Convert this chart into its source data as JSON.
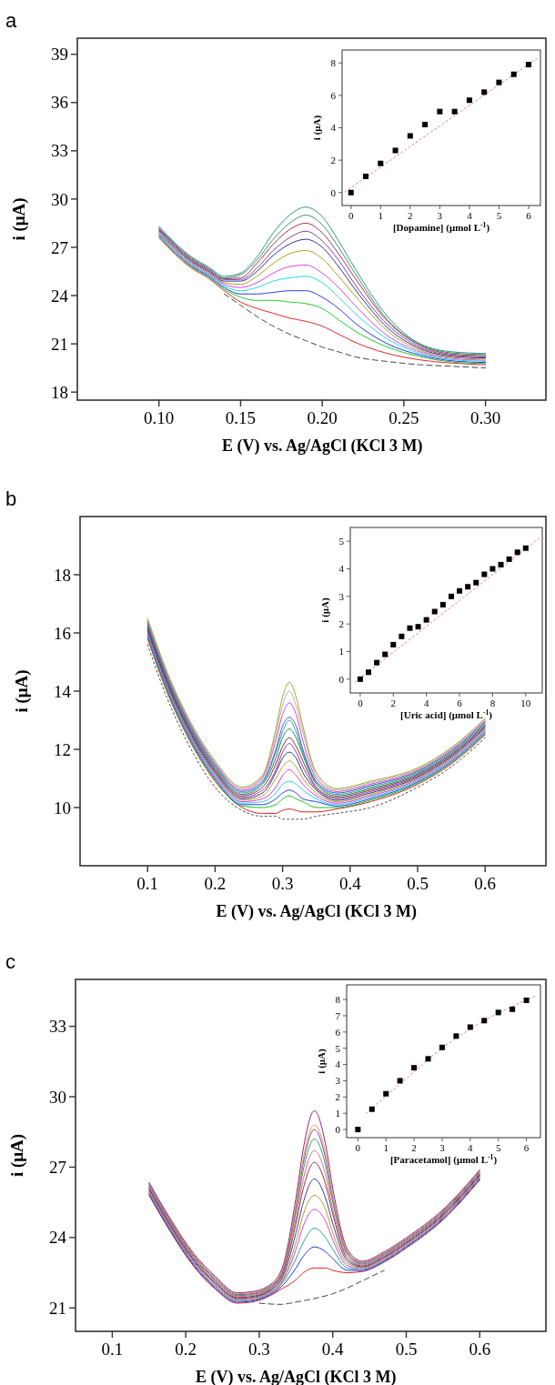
{
  "chart_data": [
    {
      "type": "line",
      "title": "a",
      "xlabel": "E (V) vs. Ag/AgCl (KCl 3 M)",
      "ylabel": "i (μA)",
      "xlim": [
        0.05,
        0.337
      ],
      "ylim": [
        17.5,
        40
      ],
      "xticks": [
        {
          "value": 0.1,
          "label": "0.10"
        },
        {
          "value": 0.15,
          "label": "0.15"
        },
        {
          "value": 0.2,
          "label": "0.20"
        },
        {
          "value": 0.25,
          "label": "0.25"
        },
        {
          "value": 0.3,
          "label": "0.30"
        }
      ],
      "yticks": [
        18,
        21,
        24,
        27,
        30,
        33,
        36,
        39
      ],
      "x": [
        0.1,
        0.12,
        0.13,
        0.14,
        0.15,
        0.16,
        0.17,
        0.18,
        0.19,
        0.2,
        0.21,
        0.22,
        0.24,
        0.26,
        0.28,
        0.3
      ],
      "series": [
        {
          "color": "#444444",
          "line_style": "dashed",
          "x": [
            0.14,
            0.15,
            0.16,
            0.17,
            0.18,
            0.19,
            0.2,
            0.21,
            0.22,
            0.24,
            0.26,
            0.28,
            0.3
          ],
          "values": [
            24.1,
            23.4,
            22.7,
            22.1,
            21.6,
            21.2,
            20.8,
            20.5,
            20.2,
            19.9,
            19.7,
            19.6,
            19.5
          ]
        },
        {
          "color": "#e8262b",
          "values": [
            27.6,
            25.7,
            25.1,
            24.3,
            23.6,
            23.2,
            22.9,
            22.6,
            22.4,
            22.1,
            21.6,
            21.1,
            20.4,
            20.0,
            19.8,
            19.7
          ]
        },
        {
          "color": "#22cc33",
          "values": [
            27.67,
            25.77,
            25.17,
            24.4,
            23.9,
            23.7,
            23.7,
            23.6,
            23.5,
            23.2,
            22.5,
            21.8,
            20.8,
            20.2,
            19.87,
            19.77
          ]
        },
        {
          "color": "#2a3bd6",
          "values": [
            27.74,
            25.84,
            25.24,
            24.5,
            24.1,
            24.1,
            24.2,
            24.3,
            24.3,
            23.9,
            23.2,
            22.3,
            21.0,
            20.3,
            19.94,
            19.84
          ]
        },
        {
          "color": "#22d8f0",
          "values": [
            27.81,
            25.91,
            25.31,
            24.6,
            24.3,
            24.5,
            24.9,
            25.1,
            25.2,
            24.8,
            23.9,
            22.9,
            21.3,
            20.4,
            20.01,
            19.91
          ]
        },
        {
          "color": "#e040e0",
          "values": [
            27.88,
            25.98,
            25.38,
            24.7,
            24.5,
            24.8,
            25.4,
            25.8,
            25.9,
            25.4,
            24.5,
            23.4,
            21.5,
            20.5,
            20.08,
            19.98
          ]
        },
        {
          "color": "#a8a020",
          "values": [
            27.95,
            26.05,
            25.45,
            24.8,
            24.7,
            25.2,
            26.0,
            26.6,
            26.8,
            26.3,
            25.2,
            24.0,
            21.8,
            20.6,
            20.15,
            20.05
          ]
        },
        {
          "color": "#303090",
          "values": [
            28.02,
            26.12,
            25.52,
            24.9,
            24.9,
            25.5,
            26.5,
            27.2,
            27.5,
            27.0,
            25.8,
            24.4,
            22.0,
            20.7,
            20.22,
            20.12
          ]
        },
        {
          "color": "#8040a0",
          "values": [
            28.09,
            26.19,
            25.59,
            25.0,
            25.0,
            25.7,
            26.8,
            27.6,
            28.0,
            27.4,
            26.2,
            24.7,
            22.2,
            20.8,
            20.29,
            20.19
          ]
        },
        {
          "color": "#a03050",
          "values": [
            28.16,
            26.26,
            25.66,
            25.05,
            25.1,
            26.0,
            27.2,
            28.1,
            28.5,
            27.9,
            26.6,
            25.1,
            22.4,
            20.9,
            20.36,
            20.26
          ]
        },
        {
          "color": "#409060",
          "values": [
            28.23,
            26.33,
            25.73,
            25.1,
            25.3,
            26.2,
            27.5,
            28.5,
            29.0,
            28.4,
            27.0,
            25.4,
            22.5,
            20.95,
            20.43,
            20.33
          ]
        },
        {
          "color": "#309090",
          "values": [
            28.3,
            26.4,
            25.8,
            25.2,
            25.4,
            26.4,
            27.9,
            29.0,
            29.5,
            28.9,
            27.4,
            25.7,
            22.7,
            21.0,
            20.5,
            20.4
          ]
        }
      ]
    },
    {
      "type": "scatter",
      "xlabel": "[Dopamine] (μmol L$^{-1}$)",
      "ylabel": "i (μA)",
      "xlim": [
        -0.3,
        6.4
      ],
      "ylim": [
        -0.8,
        8.8
      ],
      "xticks": [
        0,
        1,
        2,
        3,
        4,
        5,
        6
      ],
      "yticks": [
        0,
        2,
        4,
        6,
        8
      ],
      "marker": "square",
      "x": [
        0,
        0.5,
        1,
        1.5,
        2,
        2.5,
        3,
        3.5,
        4,
        4.5,
        5,
        5.5,
        6
      ],
      "series": [
        {
          "type": "line",
          "color": "#e08080",
          "line_style": "dotted",
          "marker": "none",
          "x": [
            -0.2,
            6.3
          ],
          "values": [
            0.05,
            8.3
          ]
        },
        {
          "color": "#000000",
          "values": [
            0,
            1.0,
            1.8,
            2.6,
            3.5,
            4.2,
            5.0,
            5.0,
            5.7,
            6.2,
            6.8,
            7.3,
            7.9
          ]
        }
      ]
    },
    {
      "type": "line",
      "title": "b",
      "xlabel": "E (V) vs. Ag/AgCl (KCl 3 M)",
      "ylabel": "i (μA)",
      "xlim": [
        0,
        0.69
      ],
      "ylim": [
        8,
        20
      ],
      "xticks": [
        0.1,
        0.2,
        0.3,
        0.4,
        0.5,
        0.6
      ],
      "yticks": [
        10,
        12,
        14,
        16,
        18
      ],
      "x": [
        0.1,
        0.13,
        0.16,
        0.2,
        0.24,
        0.27,
        0.29,
        0.3,
        0.31,
        0.32,
        0.33,
        0.35,
        0.38,
        0.43,
        0.5,
        0.55,
        0.6
      ],
      "series": [
        {
          "color": "#444444",
          "line_style": "dotted",
          "values": [
            15.6,
            13.7,
            12.2,
            10.7,
            9.9,
            9.7,
            9.7,
            9.6,
            9.6,
            9.6,
            9.6,
            9.7,
            9.8,
            10.0,
            10.7,
            11.4,
            12.4
          ]
        },
        {
          "color": "#e02020",
          "values": [
            15.8,
            13.9,
            12.4,
            10.9,
            10.0,
            9.8,
            9.8,
            9.9,
            9.95,
            9.9,
            9.85,
            9.85,
            9.95,
            10.2,
            10.8,
            11.5,
            12.5
          ]
        },
        {
          "color": "#20c020",
          "values": [
            15.85,
            13.95,
            12.45,
            10.95,
            10.05,
            10.0,
            10.1,
            10.3,
            10.4,
            10.3,
            10.2,
            10.0,
            10.0,
            10.25,
            10.84,
            11.54,
            12.54
          ]
        },
        {
          "color": "#2040e0",
          "values": [
            15.9,
            14.0,
            12.5,
            11.0,
            10.1,
            10.1,
            10.3,
            10.5,
            10.6,
            10.5,
            10.3,
            10.2,
            10.05,
            10.3,
            10.88,
            11.58,
            12.58
          ]
        },
        {
          "color": "#20d0f0",
          "values": [
            15.95,
            14.05,
            12.55,
            11.05,
            10.15,
            10.2,
            10.5,
            10.8,
            10.9,
            10.8,
            10.6,
            10.3,
            10.1,
            10.35,
            10.92,
            11.62,
            12.62
          ]
        },
        {
          "color": "#e030e0",
          "values": [
            16.0,
            14.1,
            12.6,
            11.1,
            10.2,
            10.3,
            10.7,
            11.1,
            11.3,
            11.1,
            10.8,
            10.4,
            10.15,
            10.4,
            10.96,
            11.66,
            12.66
          ]
        },
        {
          "color": "#b0a020",
          "values": [
            16.05,
            14.15,
            12.65,
            11.15,
            10.25,
            10.4,
            11.0,
            11.4,
            11.6,
            11.4,
            11.0,
            10.5,
            10.2,
            10.45,
            11.0,
            11.7,
            12.7
          ]
        },
        {
          "color": "#303090",
          "values": [
            16.1,
            14.2,
            12.7,
            11.2,
            10.3,
            10.5,
            11.2,
            11.7,
            11.9,
            11.7,
            11.2,
            10.6,
            10.25,
            10.5,
            11.04,
            11.74,
            12.74
          ]
        },
        {
          "color": "#804090",
          "values": [
            16.15,
            14.25,
            12.75,
            11.25,
            10.35,
            10.6,
            11.3,
            11.9,
            12.2,
            11.9,
            11.4,
            10.65,
            10.3,
            10.55,
            11.08,
            11.78,
            12.78
          ]
        },
        {
          "color": "#902040",
          "values": [
            16.2,
            14.3,
            12.8,
            11.3,
            10.4,
            10.7,
            11.5,
            12.1,
            12.4,
            12.1,
            11.6,
            10.7,
            10.35,
            10.6,
            11.12,
            11.82,
            12.82
          ]
        },
        {
          "color": "#208050",
          "values": [
            16.25,
            14.35,
            12.85,
            11.35,
            10.45,
            10.8,
            11.7,
            12.4,
            12.7,
            12.4,
            11.8,
            10.8,
            10.4,
            10.65,
            11.16,
            11.86,
            12.86
          ]
        },
        {
          "color": "#30a0a0",
          "values": [
            16.3,
            14.4,
            12.9,
            11.4,
            10.5,
            10.85,
            11.9,
            12.6,
            13.0,
            12.6,
            11.9,
            10.85,
            10.45,
            10.7,
            11.2,
            11.9,
            12.9
          ]
        },
        {
          "color": "#3060c0",
          "values": [
            16.35,
            14.45,
            12.95,
            11.45,
            10.55,
            10.9,
            12.0,
            12.8,
            13.1,
            12.8,
            12.0,
            10.9,
            10.5,
            10.75,
            11.24,
            11.94,
            12.94
          ]
        },
        {
          "color": "#e040c0",
          "values": [
            16.4,
            14.5,
            13.0,
            11.5,
            10.6,
            11.0,
            12.3,
            13.2,
            13.6,
            13.2,
            12.3,
            11.0,
            10.55,
            10.8,
            11.28,
            11.98,
            12.98
          ]
        },
        {
          "color": "#b0b0b0",
          "values": [
            16.45,
            14.55,
            13.05,
            11.55,
            10.65,
            11.05,
            12.5,
            13.5,
            14.0,
            13.5,
            12.6,
            11.1,
            10.6,
            10.85,
            11.32,
            12.02,
            13.02
          ]
        },
        {
          "color": "#a0a030",
          "values": [
            16.5,
            14.6,
            13.1,
            11.6,
            10.7,
            11.1,
            12.7,
            13.8,
            14.3,
            13.8,
            12.8,
            11.2,
            10.65,
            10.9,
            11.36,
            12.06,
            13.06
          ]
        }
      ]
    },
    {
      "type": "scatter",
      "xlabel": "[Uric acid] (μmol L$^{-1}$)",
      "ylabel": "i (μA)",
      "xlim": [
        -0.6,
        11
      ],
      "ylim": [
        -0.5,
        5.5
      ],
      "xticks": [
        0,
        2,
        4,
        6,
        8,
        10
      ],
      "yticks": [
        0,
        1,
        2,
        3,
        4,
        5
      ],
      "marker": "square",
      "x": [
        0,
        0.5,
        1,
        1.5,
        2,
        2.5,
        3,
        3.5,
        4,
        4.5,
        5,
        5.5,
        6,
        6.5,
        7,
        7.5,
        8,
        8.5,
        9,
        9.5,
        10
      ],
      "series": [
        {
          "type": "line",
          "color": "#e08080",
          "line_style": "dotted",
          "marker": "none",
          "x": [
            -0.3,
            10.8
          ],
          "values": [
            -0.1,
            5.1
          ]
        },
        {
          "color": "#000000",
          "values": [
            0,
            0.25,
            0.6,
            0.9,
            1.25,
            1.55,
            1.85,
            1.9,
            2.15,
            2.45,
            2.7,
            3.0,
            3.2,
            3.35,
            3.5,
            3.8,
            4.0,
            4.15,
            4.35,
            4.6,
            4.75
          ]
        }
      ]
    },
    {
      "type": "line",
      "title": "c",
      "xlabel": "E (V) vs. Ag/AgCl (KCl 3 M)",
      "ylabel": "i (μA)",
      "xlim": [
        0.05,
        0.69
      ],
      "ylim": [
        20,
        35
      ],
      "xticks": [
        0.1,
        0.2,
        0.3,
        0.4,
        0.5,
        0.6
      ],
      "yticks": [
        21,
        24,
        27,
        30,
        33
      ],
      "x": [
        0.15,
        0.18,
        0.21,
        0.24,
        0.27,
        0.29,
        0.31,
        0.33,
        0.35,
        0.36,
        0.375,
        0.39,
        0.4,
        0.42,
        0.44,
        0.47,
        0.5,
        0.55,
        0.6
      ],
      "series": [
        {
          "color": "#444444",
          "line_style": "dashed",
          "x": [
            0.3,
            0.33,
            0.35,
            0.375,
            0.4,
            0.42,
            0.44,
            0.47
          ],
          "values": [
            21.2,
            21.15,
            21.25,
            21.4,
            21.6,
            21.85,
            22.15,
            22.6
          ]
        },
        {
          "color": "#e02020",
          "values": [
            25.8,
            24.2,
            22.8,
            21.8,
            21.2,
            21.25,
            21.45,
            21.8,
            22.2,
            22.5,
            22.7,
            22.7,
            22.6,
            22.5,
            22.55,
            22.95,
            23.55,
            24.75,
            26.45
          ]
        },
        {
          "color": "#2030e0",
          "values": [
            25.85,
            24.25,
            22.85,
            21.85,
            21.24,
            21.29,
            21.49,
            21.9,
            22.7,
            23.2,
            23.6,
            23.4,
            23.1,
            22.6,
            22.59,
            22.99,
            23.59,
            24.79,
            26.49
          ]
        },
        {
          "color": "#20a0a0",
          "values": [
            25.9,
            24.3,
            22.9,
            21.9,
            21.28,
            21.33,
            21.53,
            22.0,
            23.1,
            23.8,
            24.4,
            24.0,
            23.5,
            22.7,
            22.63,
            23.03,
            23.63,
            24.83,
            26.53
          ]
        },
        {
          "color": "#e040e0",
          "values": [
            25.95,
            24.35,
            22.95,
            21.95,
            21.32,
            21.37,
            21.57,
            22.05,
            23.5,
            24.5,
            25.2,
            24.7,
            23.9,
            22.8,
            22.67,
            23.07,
            23.67,
            24.87,
            26.57
          ]
        },
        {
          "color": "#b0a020",
          "values": [
            26.0,
            24.4,
            23.0,
            22.0,
            21.36,
            21.41,
            21.61,
            22.1,
            23.8,
            25.0,
            25.8,
            25.2,
            24.2,
            22.9,
            22.71,
            23.11,
            23.71,
            24.91,
            26.61
          ]
        },
        {
          "color": "#304090",
          "values": [
            26.05,
            24.45,
            23.05,
            22.05,
            21.4,
            21.45,
            21.65,
            22.2,
            24.2,
            25.5,
            26.5,
            25.7,
            24.6,
            23.0,
            22.75,
            23.15,
            23.75,
            24.95,
            26.65
          ]
        },
        {
          "color": "#903040",
          "values": [
            26.1,
            24.5,
            23.1,
            22.1,
            21.44,
            21.49,
            21.69,
            22.3,
            24.6,
            26.1,
            27.2,
            26.3,
            25.0,
            23.1,
            22.79,
            23.19,
            23.79,
            24.99,
            26.69
          ]
        },
        {
          "color": "#e060a0",
          "values": [
            26.15,
            24.55,
            23.15,
            22.15,
            21.48,
            21.53,
            21.73,
            22.35,
            24.8,
            26.5,
            27.7,
            26.7,
            25.2,
            23.2,
            22.83,
            23.23,
            23.83,
            25.03,
            26.73
          ]
        },
        {
          "color": "#30a050",
          "values": [
            26.2,
            24.6,
            23.2,
            22.2,
            21.52,
            21.57,
            21.77,
            22.4,
            25.1,
            26.9,
            28.2,
            27.1,
            25.5,
            23.3,
            22.87,
            23.27,
            23.87,
            25.07,
            26.77
          ]
        },
        {
          "color": "#8040c0",
          "values": [
            26.25,
            24.65,
            23.25,
            22.25,
            21.56,
            21.61,
            21.81,
            22.45,
            25.3,
            27.2,
            28.6,
            27.4,
            25.7,
            23.35,
            22.91,
            23.31,
            23.91,
            25.11,
            26.81
          ]
        },
        {
          "color": "#e0a040",
          "values": [
            26.3,
            24.7,
            23.3,
            22.3,
            21.6,
            21.65,
            21.85,
            22.5,
            25.4,
            27.4,
            28.8,
            27.6,
            25.8,
            23.4,
            22.95,
            23.35,
            23.95,
            25.15,
            26.85
          ]
        },
        {
          "color": "#902090",
          "values": [
            26.35,
            24.75,
            23.35,
            22.35,
            21.64,
            21.69,
            21.89,
            22.6,
            25.7,
            27.8,
            29.4,
            28.0,
            26.1,
            23.5,
            22.99,
            23.39,
            23.99,
            25.19,
            26.89
          ]
        }
      ]
    },
    {
      "type": "scatter",
      "xlabel": "[Paracetamol] (μmol L$^{-1}$)",
      "ylabel": "i (μA)",
      "xlim": [
        -0.4,
        6.5
      ],
      "ylim": [
        -0.5,
        8.9
      ],
      "xticks": [
        0,
        1,
        2,
        3,
        4,
        5,
        6
      ],
      "yticks": [
        0,
        1,
        2,
        3,
        4,
        5,
        6,
        7,
        8
      ],
      "marker": "square",
      "x": [
        0,
        0.5,
        1,
        1.5,
        2,
        2.5,
        3,
        3.5,
        4,
        4.5,
        5,
        5.5,
        6
      ],
      "series": [
        {
          "type": "line",
          "color": "#e08080",
          "line_style": "dotted",
          "marker": "none",
          "x": [
            0.3,
            1.5,
            3,
            4.5,
            6.3
          ],
          "values": [
            1.0,
            2.8,
            5.0,
            6.7,
            8.2
          ]
        },
        {
          "color": "#000000",
          "values": [
            0,
            1.25,
            2.2,
            3.0,
            3.8,
            4.35,
            5.05,
            5.75,
            6.3,
            6.7,
            7.2,
            7.4,
            7.95
          ]
        }
      ]
    }
  ]
}
